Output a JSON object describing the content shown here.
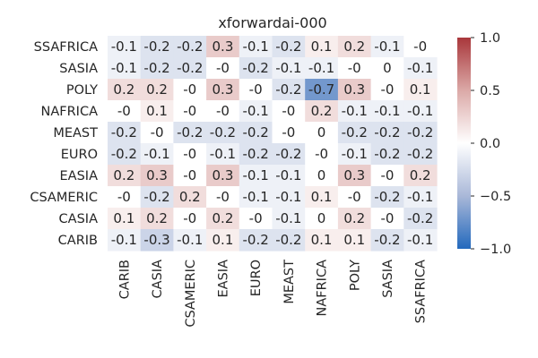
{
  "chart_data": {
    "type": "heatmap",
    "title": "xforwardai-000",
    "rows": [
      "SSAFRICA",
      "SASIA",
      "POLY",
      "NAFRICA",
      "MEAST",
      "EURO",
      "EASIA",
      "CSAMERIC",
      "CASIA",
      "CARIB"
    ],
    "columns": [
      "CARIB",
      "CASIA",
      "CSAMERIC",
      "EASIA",
      "EURO",
      "MEAST",
      "NAFRICA",
      "POLY",
      "SASIA",
      "SSAFRICA"
    ],
    "values": [
      [
        -0.1,
        -0.2,
        -0.2,
        0.3,
        -0.1,
        -0.2,
        0.1,
        0.2,
        -0.1,
        -0.0
      ],
      [
        -0.1,
        -0.2,
        -0.2,
        -0.0,
        -0.2,
        -0.1,
        -0.1,
        -0.0,
        0.0,
        -0.1
      ],
      [
        0.2,
        0.2,
        -0.0,
        0.3,
        -0.0,
        -0.2,
        -0.7,
        0.3,
        -0.0,
        0.1
      ],
      [
        -0.0,
        0.1,
        -0.0,
        -0.0,
        -0.1,
        -0.0,
        0.2,
        -0.1,
        -0.1,
        -0.1
      ],
      [
        -0.2,
        -0.0,
        -0.2,
        -0.2,
        -0.2,
        -0.0,
        0.0,
        -0.2,
        -0.2,
        -0.2
      ],
      [
        -0.2,
        -0.1,
        -0.0,
        -0.1,
        -0.2,
        -0.2,
        -0.0,
        -0.1,
        -0.2,
        -0.2
      ],
      [
        0.2,
        0.3,
        -0.0,
        0.3,
        -0.1,
        -0.1,
        0.0,
        0.3,
        -0.0,
        0.2
      ],
      [
        -0.0,
        -0.2,
        0.2,
        -0.0,
        -0.1,
        -0.1,
        0.1,
        -0.0,
        -0.2,
        -0.1
      ],
      [
        0.1,
        0.2,
        -0.0,
        0.2,
        -0.0,
        -0.1,
        0.0,
        0.2,
        -0.0,
        -0.2
      ],
      [
        -0.1,
        -0.3,
        -0.1,
        0.1,
        -0.2,
        -0.2,
        0.1,
        0.1,
        -0.2,
        -0.1
      ]
    ],
    "cell_labels": [
      [
        "-0.1",
        "-0.2",
        "-0.2",
        "0.3",
        "-0.1",
        "-0.2",
        "0.1",
        "0.2",
        "-0.1",
        "-0"
      ],
      [
        "-0.1",
        "-0.2",
        "-0.2",
        "-0",
        "-0.2",
        "-0.1",
        "-0.1",
        "-0",
        "0",
        "-0.1"
      ],
      [
        "0.2",
        "0.2",
        "-0",
        "0.3",
        "-0",
        "-0.2",
        "-0.7",
        "0.3",
        "-0",
        "0.1"
      ],
      [
        "-0",
        "0.1",
        "-0",
        "-0",
        "-0.1",
        "-0",
        "0.2",
        "-0.1",
        "-0.1",
        "-0.1"
      ],
      [
        "-0.2",
        "-0",
        "-0.2",
        "-0.2",
        "-0.2",
        "-0",
        "0",
        "-0.2",
        "-0.2",
        "-0.2"
      ],
      [
        "-0.2",
        "-0.1",
        "-0",
        "-0.1",
        "-0.2",
        "-0.2",
        "-0",
        "-0.1",
        "-0.2",
        "-0.2"
      ],
      [
        "0.2",
        "0.3",
        "-0",
        "0.3",
        "-0.1",
        "-0.1",
        "0",
        "0.3",
        "-0",
        "0.2"
      ],
      [
        "-0",
        "-0.2",
        "0.2",
        "-0",
        "-0.1",
        "-0.1",
        "0.1",
        "-0",
        "-0.2",
        "-0.1"
      ],
      [
        "0.1",
        "0.2",
        "-0",
        "0.2",
        "-0",
        "-0.1",
        "0",
        "0.2",
        "-0",
        "-0.2"
      ],
      [
        "-0.1",
        "-0.3",
        "-0.1",
        "0.1",
        "-0.2",
        "-0.2",
        "0.1",
        "0.1",
        "-0.2",
        "-0.1"
      ]
    ],
    "vmin": -1.0,
    "vmax": 1.0,
    "colormap": "vlag",
    "colormap_stops": [
      "#2369bd",
      "#a9b8d8",
      "#ffffff",
      "#dba9a7",
      "#a9373b"
    ],
    "colorbar": {
      "ticks": [
        1.0,
        0.5,
        0.0,
        -0.5,
        -1.0
      ],
      "tick_labels": [
        "1.0",
        "0.5",
        "0.0",
        "−0.5",
        "−1.0"
      ]
    },
    "grid": false
  }
}
